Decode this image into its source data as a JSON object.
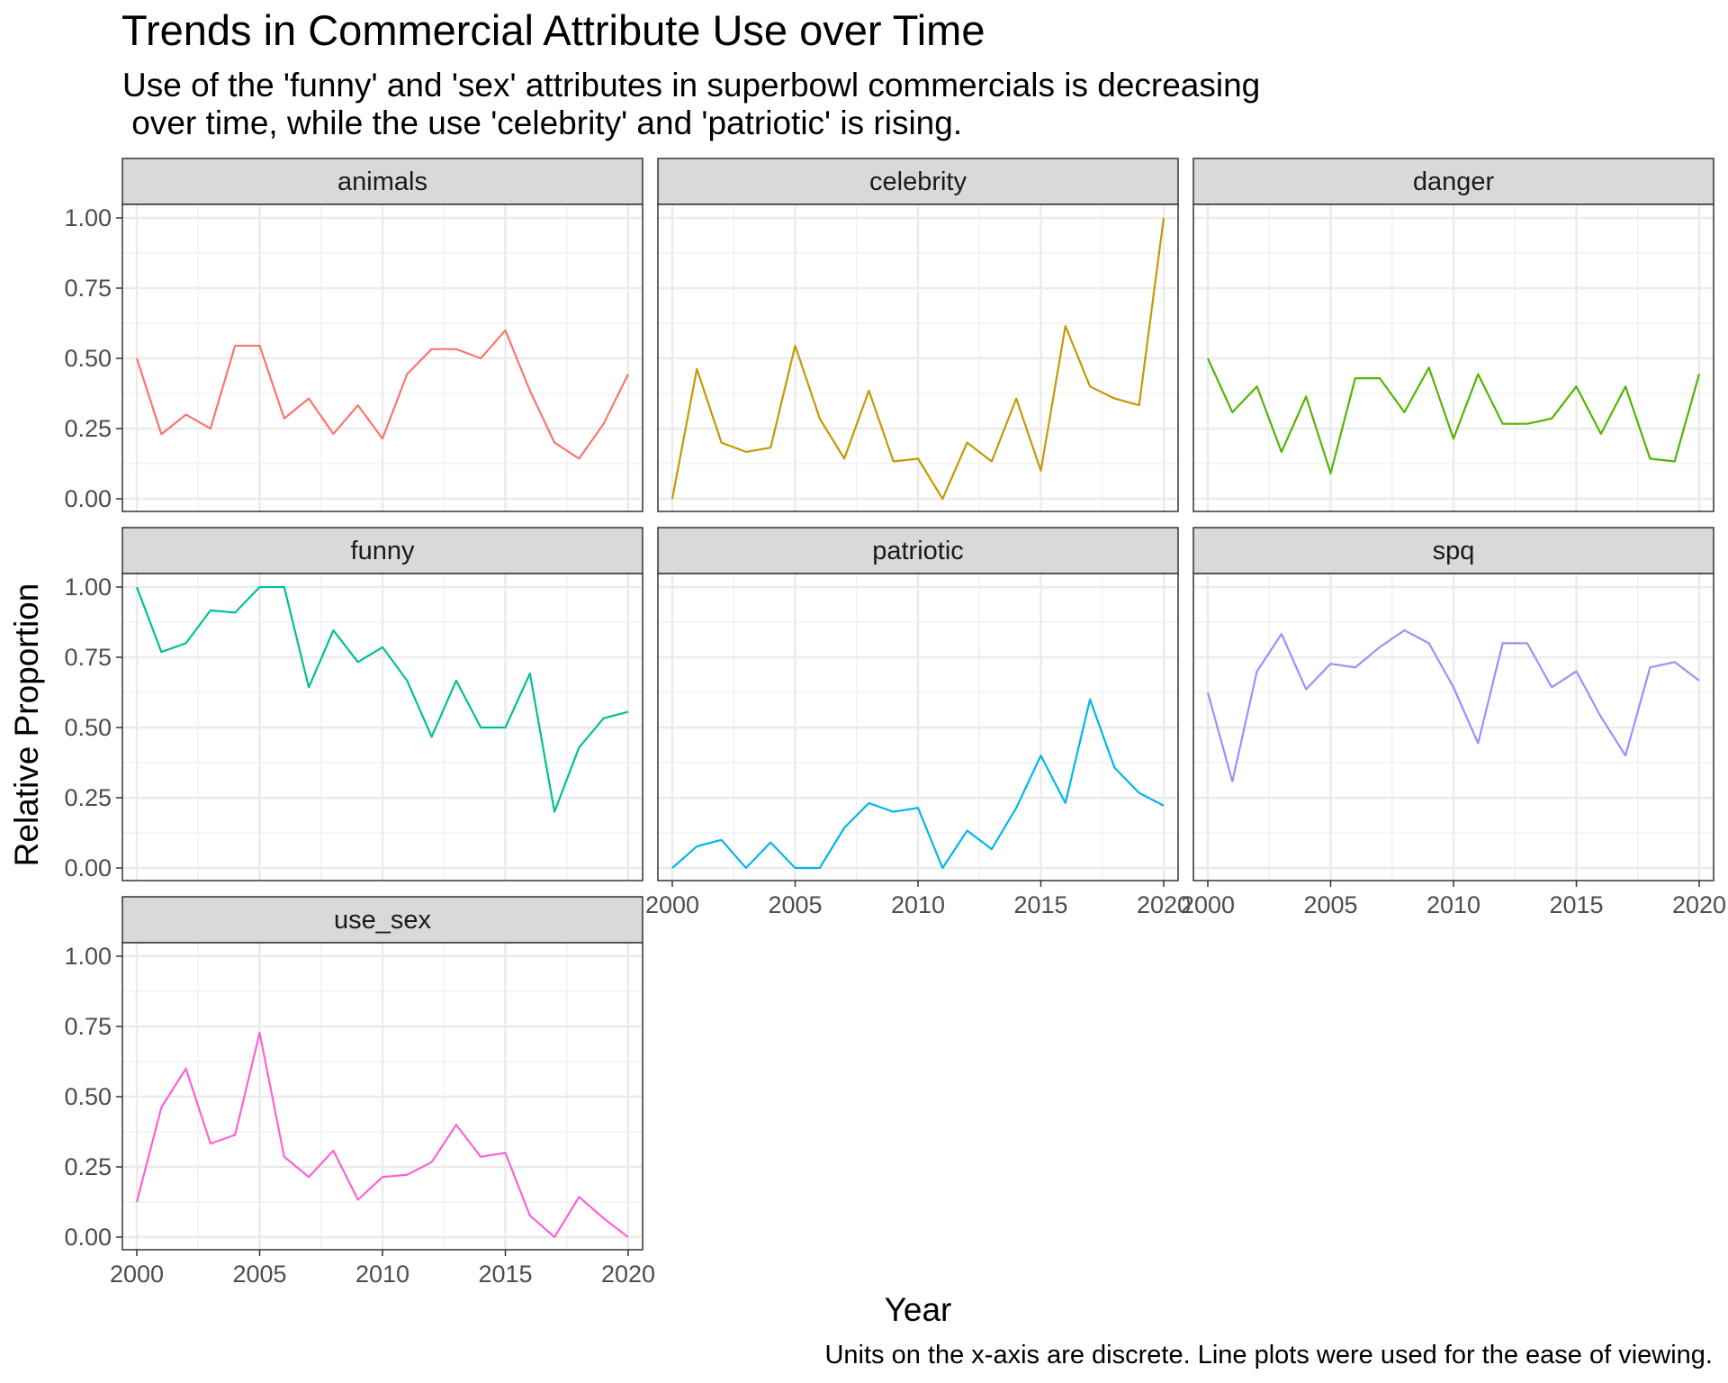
{
  "chart_data": {
    "type": "line",
    "title": "Trends in Commercial Attribute Use over Time",
    "subtitle_lines": [
      "Use of the 'funny' and 'sex' attributes in superbowl commercials is decreasing",
      " over time, while the use 'celebrity' and 'patriotic' is rising."
    ],
    "xlabel": "Year",
    "ylabel": "Relative Proportion",
    "caption": "Units on the x-axis are discrete. Line plots were used for the ease of viewing.",
    "x": [
      2000,
      2001,
      2002,
      2003,
      2004,
      2005,
      2006,
      2007,
      2008,
      2009,
      2010,
      2011,
      2012,
      2013,
      2014,
      2015,
      2016,
      2017,
      2018,
      2019,
      2020
    ],
    "xlim": [
      2000,
      2020
    ],
    "ylim": [
      0,
      1
    ],
    "x_ticks": [
      2000,
      2005,
      2010,
      2015,
      2020
    ],
    "x_tick_labels": [
      "2000",
      "2005",
      "2010",
      "2015",
      "2020"
    ],
    "y_ticks": [
      0,
      0.25,
      0.5,
      0.75,
      1
    ],
    "y_tick_labels": [
      "0.00",
      "0.25",
      "0.50",
      "0.75",
      "1.00"
    ],
    "grid": true,
    "legend": "none",
    "facets": [
      {
        "name": "animals",
        "color": "#F8766D",
        "values": [
          0.5,
          0.23,
          0.3,
          0.25,
          0.545,
          0.545,
          0.286,
          0.357,
          0.231,
          0.333,
          0.214,
          0.444,
          0.533,
          0.533,
          0.5,
          0.6,
          0.385,
          0.2,
          0.143,
          0.267,
          0.444
        ]
      },
      {
        "name": "celebrity",
        "color": "#C49A00",
        "values": [
          0.0,
          0.462,
          0.2,
          0.167,
          0.182,
          0.545,
          0.286,
          0.143,
          0.385,
          0.133,
          0.143,
          0.0,
          0.2,
          0.133,
          0.357,
          0.1,
          0.615,
          0.4,
          0.357,
          0.333,
          1.0
        ]
      },
      {
        "name": "danger",
        "color": "#53B400",
        "values": [
          0.5,
          0.308,
          0.4,
          0.167,
          0.364,
          0.091,
          0.429,
          0.429,
          0.308,
          0.467,
          0.214,
          0.444,
          0.267,
          0.267,
          0.286,
          0.4,
          0.231,
          0.4,
          0.143,
          0.133,
          0.444
        ]
      },
      {
        "name": "funny",
        "color": "#00C094",
        "values": [
          1.0,
          0.769,
          0.8,
          0.917,
          0.909,
          1.0,
          1.0,
          0.643,
          0.846,
          0.733,
          0.786,
          0.667,
          0.467,
          0.667,
          0.5,
          0.5,
          0.692,
          0.2,
          0.429,
          0.533,
          0.556
        ]
      },
      {
        "name": "patriotic",
        "color": "#00B6EB",
        "values": [
          0.0,
          0.077,
          0.1,
          0.0,
          0.091,
          0.0,
          0.0,
          0.143,
          0.231,
          0.2,
          0.214,
          0.0,
          0.133,
          0.067,
          0.214,
          0.4,
          0.231,
          0.6,
          0.357,
          0.267,
          0.222
        ]
      },
      {
        "name": "spq",
        "color": "#A58AFF",
        "values": [
          0.625,
          0.308,
          0.7,
          0.833,
          0.636,
          0.727,
          0.714,
          0.786,
          0.846,
          0.8,
          0.643,
          0.444,
          0.8,
          0.8,
          0.643,
          0.7,
          0.538,
          0.4,
          0.714,
          0.733,
          0.667
        ]
      },
      {
        "name": "use_sex",
        "color": "#FB61D7",
        "values": [
          0.125,
          0.462,
          0.6,
          0.333,
          0.364,
          0.727,
          0.286,
          0.214,
          0.308,
          0.133,
          0.214,
          0.222,
          0.267,
          0.4,
          0.286,
          0.3,
          0.077,
          0.0,
          0.143,
          0.067,
          0.0
        ]
      }
    ]
  }
}
